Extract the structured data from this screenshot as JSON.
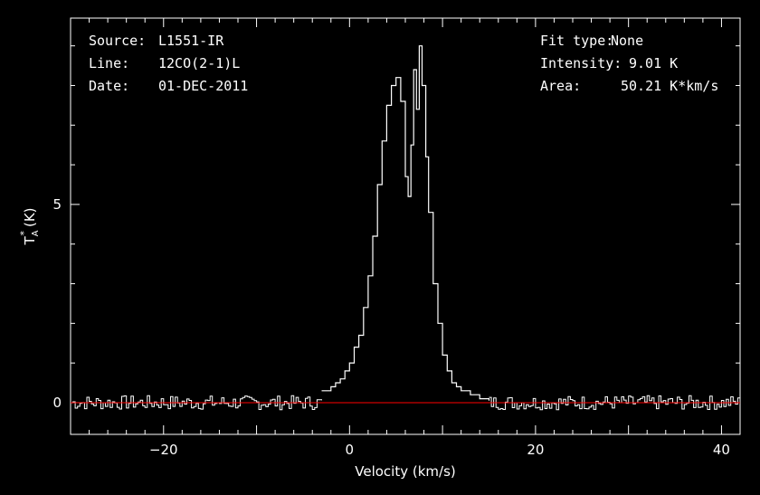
{
  "header_left": [
    {
      "key": "Source:",
      "value": "L1551-IR"
    },
    {
      "key": "Line:",
      "value": "12CO(2-1)L"
    },
    {
      "key": "Date:",
      "value": "01-DEC-2011"
    }
  ],
  "header_right": [
    {
      "key": "Fit type:",
      "value": "None"
    },
    {
      "key": "Intensity:",
      "value": "9.01 K"
    },
    {
      "key": "Area:",
      "value": "50.21 K*km/s"
    }
  ],
  "colors": {
    "background": "#000000",
    "axes": "#ffffff",
    "spectrum": "#ffffff",
    "baseline": "#ff0000"
  },
  "chart_data": {
    "type": "line",
    "step": true,
    "xlabel": "Velocity (km/s)",
    "ylabel_main": "T",
    "ylabel_sup": "*",
    "ylabel_sub": "A",
    "ylabel_unit": "(K)",
    "xlim": [
      -30,
      42
    ],
    "ylim": [
      -0.8,
      9.7
    ],
    "xticks": [
      -20,
      0,
      20,
      40
    ],
    "yticks": [
      0,
      5
    ],
    "baseline_y": 0,
    "series": [
      {
        "x": [
          -3,
          -2,
          -1.5,
          -1,
          -0.5,
          0,
          0.5,
          1,
          1.5,
          2,
          2.5,
          3,
          3.5,
          4,
          4.5,
          5,
          5.5,
          6,
          6.3,
          6.6,
          6.9,
          7.2,
          7.5,
          7.8,
          8.2,
          8.5,
          9,
          9.5,
          10,
          10.5,
          11,
          11.5,
          12,
          13,
          14,
          15
        ],
        "y": [
          0.3,
          0.4,
          0.5,
          0.6,
          0.8,
          1.0,
          1.4,
          1.7,
          2.4,
          3.2,
          4.2,
          5.5,
          6.6,
          7.5,
          8.0,
          8.2,
          7.6,
          5.7,
          5.2,
          6.5,
          8.4,
          7.4,
          9.0,
          8.0,
          6.2,
          4.8,
          3.0,
          2.0,
          1.2,
          0.8,
          0.5,
          0.4,
          0.3,
          0.2,
          0.1,
          0.05
        ]
      }
    ]
  }
}
